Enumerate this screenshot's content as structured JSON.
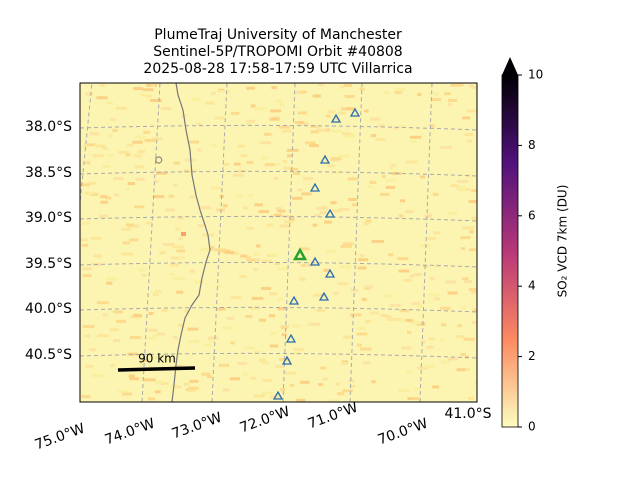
{
  "title": [
    "PlumeTraj    University of Manchester",
    "Sentinel-5P/TROPOMI Orbit #40808",
    "2025-08-28   17:58-17:59 UTC   Villarrica"
  ],
  "lat_labels": [
    "38.0°S",
    "38.5°S",
    "39.0°S",
    "39.5°S",
    "40.0°S",
    "40.5°S",
    "41.0°S"
  ],
  "lon_labels": [
    "75.0°W",
    "74.0°W",
    "73.0°W",
    "72.0°W",
    "71.0°W",
    "70.0°W"
  ],
  "scale_label": "90 km",
  "colorbar": {
    "label": "SO₂ VCD 7km (DU)",
    "lim": [
      0,
      10
    ],
    "ticks": [
      0,
      2,
      4,
      6,
      8,
      10
    ]
  }
}
